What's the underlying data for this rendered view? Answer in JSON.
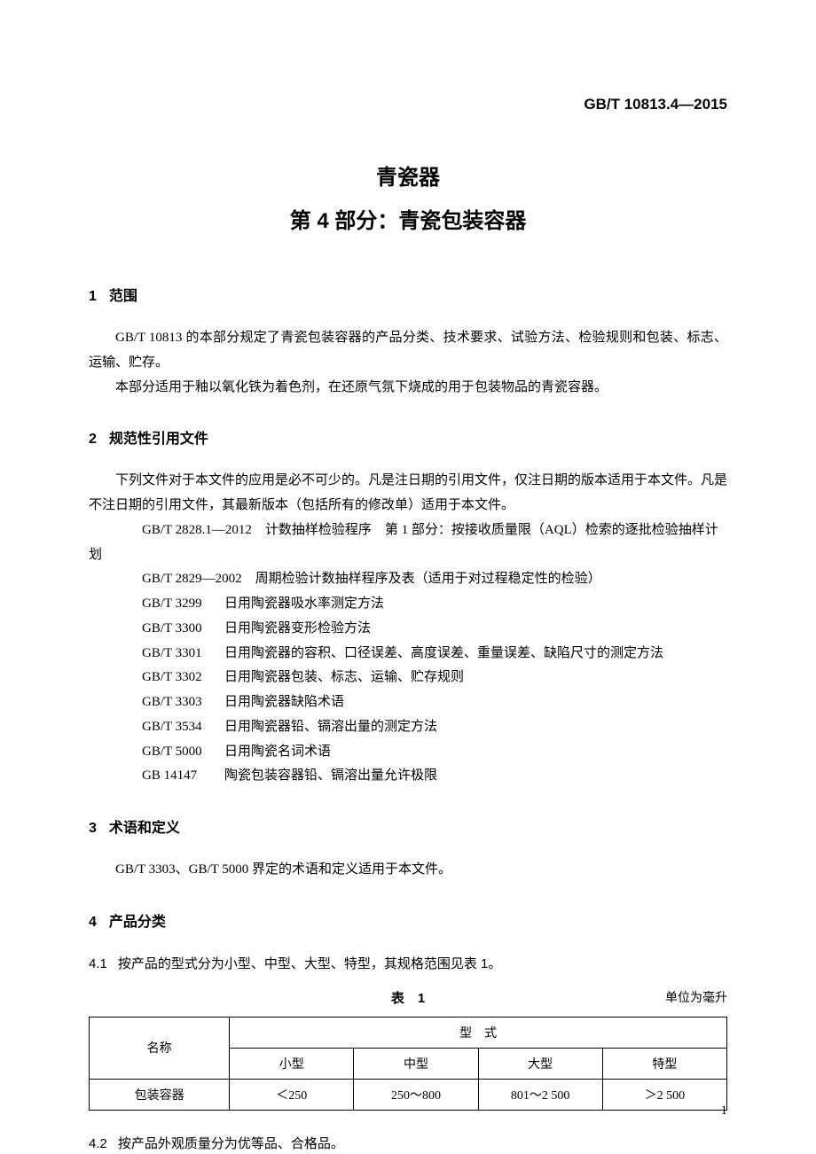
{
  "standard_number": "GB/T 10813.4—2015",
  "title": {
    "main": "青瓷器",
    "sub": "第 4 部分：青瓷包装容器"
  },
  "sections": {
    "s1": {
      "num": "1",
      "title": "范围",
      "p1": "GB/T 10813 的本部分规定了青瓷包装容器的产品分类、技术要求、试验方法、检验规则和包装、标志、运输、贮存。",
      "p2": "本部分适用于釉以氧化铁为着色剂，在还原气氛下烧成的用于包装物品的青瓷容器。"
    },
    "s2": {
      "num": "2",
      "title": "规范性引用文件",
      "intro": "下列文件对于本文件的应用是必不可少的。凡是注日期的引用文件，仅注日期的版本适用于本文件。凡是不注日期的引用文件，其最新版本（包括所有的修改单）适用于本文件。",
      "refs": [
        {
          "code": "GB/T 2828.1—2012",
          "desc": "计数抽样检验程序　第 1 部分：按接收质量限（AQL）检索的逐批检验抽样计划"
        },
        {
          "code": "GB/T 2829—2002",
          "desc": "周期检验计数抽样程序及表（适用于对过程稳定性的检验）"
        },
        {
          "code": "GB/T 3299",
          "desc": "日用陶瓷器吸水率测定方法"
        },
        {
          "code": "GB/T 3300",
          "desc": "日用陶瓷器变形检验方法"
        },
        {
          "code": "GB/T 3301",
          "desc": "日用陶瓷器的容积、口径误差、高度误差、重量误差、缺陷尺寸的测定方法"
        },
        {
          "code": "GB/T 3302",
          "desc": "日用陶瓷器包装、标志、运输、贮存规则"
        },
        {
          "code": "GB/T 3303",
          "desc": "日用陶瓷器缺陷术语"
        },
        {
          "code": "GB/T 3534",
          "desc": "日用陶瓷器铅、镉溶出量的测定方法"
        },
        {
          "code": "GB/T 5000",
          "desc": "日用陶瓷名词术语"
        },
        {
          "code": "GB 14147",
          "desc": "陶瓷包装容器铅、镉溶出量允许极限"
        }
      ]
    },
    "s3": {
      "num": "3",
      "title": "术语和定义",
      "p1": "GB/T 3303、GB/T 5000 界定的术语和定义适用于本文件。"
    },
    "s4": {
      "num": "4",
      "title": "产品分类",
      "c41": {
        "num": "4.1",
        "text": "按产品的型式分为小型、中型、大型、特型，其规格范围见表 1。"
      },
      "c42": {
        "num": "4.2",
        "text": "按产品外观质量分为优等品、合格品。"
      }
    }
  },
  "table1": {
    "caption": "表　1",
    "unit": "单位为毫升",
    "col_name": "名称",
    "col_type": "型　式",
    "sub_cols": [
      "小型",
      "中型",
      "大型",
      "特型"
    ],
    "row_label": "包装容器",
    "row_values": [
      "＜250",
      "250～800",
      "801～2 500",
      "＞2 500"
    ],
    "col_widths": [
      "22%",
      "19.5%",
      "19.5%",
      "19.5%",
      "19.5%"
    ]
  },
  "page_number": "1",
  "colors": {
    "text": "#000000",
    "background": "#ffffff",
    "border": "#000000"
  }
}
